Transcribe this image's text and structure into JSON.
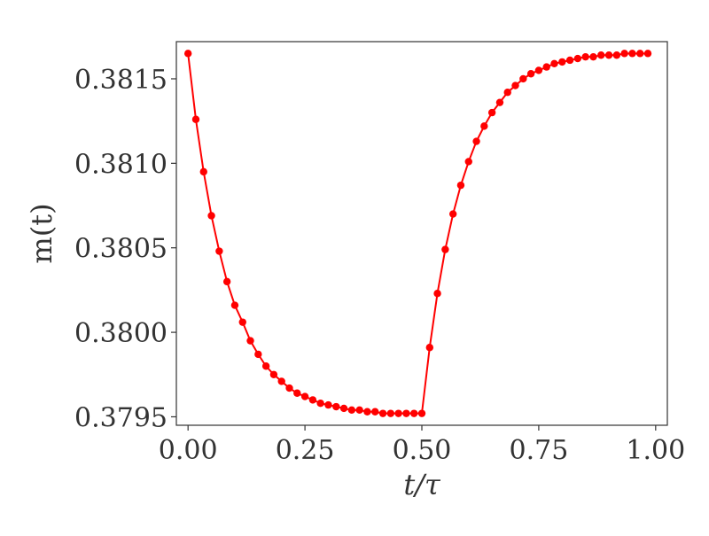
{
  "chart_data": {
    "type": "line",
    "xlabel": "t/τ",
    "ylabel": "m(t)",
    "xlim": [
      -0.025,
      1.025
    ],
    "ylim": [
      0.37945,
      0.38172
    ],
    "xticks": [
      0.0,
      0.25,
      0.5,
      0.75,
      1.0
    ],
    "xtick_labels": [
      "0.00",
      "0.25",
      "0.50",
      "0.75",
      "1.00"
    ],
    "yticks": [
      0.3795,
      0.38,
      0.3805,
      0.381,
      0.3815
    ],
    "ytick_labels": [
      "0.3795",
      "0.3800",
      "0.3805",
      "0.3810",
      "0.3815"
    ],
    "grid": false,
    "color": "#ff0000",
    "series": [
      {
        "x": [
          0.0,
          0.0167,
          0.0333,
          0.05,
          0.0667,
          0.0833,
          0.1,
          0.1167,
          0.1333,
          0.15,
          0.1667,
          0.1833,
          0.2,
          0.2167,
          0.2333,
          0.25,
          0.2667,
          0.2833,
          0.3,
          0.3167,
          0.3333,
          0.35,
          0.3667,
          0.3833,
          0.4,
          0.4167,
          0.4333,
          0.45,
          0.4667,
          0.4833,
          0.5,
          0.5167,
          0.5333,
          0.55,
          0.5667,
          0.5833,
          0.6,
          0.6167,
          0.6333,
          0.65,
          0.6667,
          0.6833,
          0.7,
          0.7167,
          0.7333,
          0.75,
          0.7667,
          0.7833,
          0.8,
          0.8167,
          0.8333,
          0.85,
          0.8667,
          0.8833,
          0.9,
          0.9167,
          0.9333,
          0.95,
          0.9667,
          0.9833
        ],
        "y": [
          0.38165,
          0.38126,
          0.38095,
          0.38069,
          0.38048,
          0.3803,
          0.38016,
          0.38006,
          0.37995,
          0.37987,
          0.3798,
          0.37975,
          0.37971,
          0.37967,
          0.37964,
          0.37962,
          0.3796,
          0.37958,
          0.37957,
          0.37956,
          0.37955,
          0.37954,
          0.37954,
          0.37953,
          0.37953,
          0.37952,
          0.37952,
          0.37952,
          0.37952,
          0.37952,
          0.37952,
          0.37991,
          0.38023,
          0.38049,
          0.3807,
          0.38087,
          0.38101,
          0.38113,
          0.38122,
          0.3813,
          0.38136,
          0.38142,
          0.38146,
          0.3815,
          0.38153,
          0.38155,
          0.38157,
          0.38159,
          0.3816,
          0.38161,
          0.38162,
          0.38163,
          0.38163,
          0.38164,
          0.38164,
          0.38164,
          0.38165,
          0.38165,
          0.38165,
          0.38165
        ]
      }
    ]
  }
}
